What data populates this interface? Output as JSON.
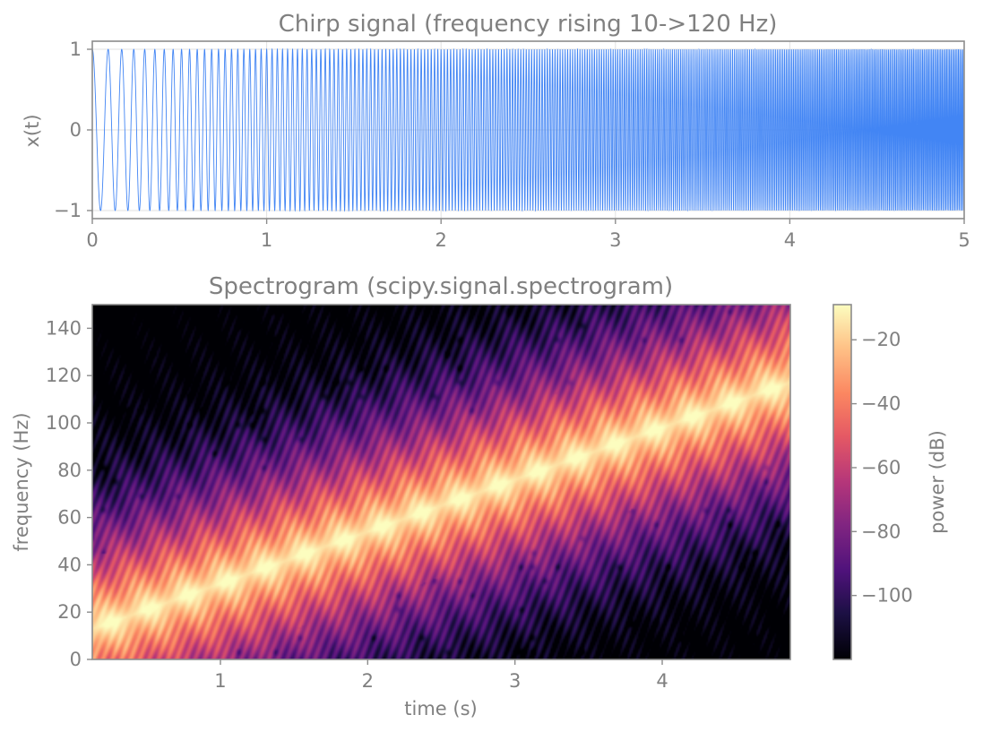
{
  "chart_data": [
    {
      "type": "line",
      "title": "Chirp signal (frequency rising 10->120 Hz)",
      "xlabel": "",
      "ylabel": "x(t)",
      "xlim": [
        0,
        5
      ],
      "ylim": [
        -1.1,
        1.1
      ],
      "xticks": [
        0,
        1,
        2,
        3,
        4,
        5
      ],
      "xtick_labels": [
        "0",
        "1",
        "2",
        "3",
        "4",
        "5"
      ],
      "yticks": [
        -1,
        0,
        1
      ],
      "ytick_labels": [
        "−1",
        "0",
        "1"
      ],
      "grid": true,
      "series": [
        {
          "color": "#4285f4",
          "function": "cos(2*pi*(10*t + 11*t^2))",
          "f0": 10,
          "f1": 120,
          "t_start": 0,
          "t_end": 5
        }
      ]
    },
    {
      "type": "heatmap",
      "title": "Spectrogram (scipy.signal.spectrogram)",
      "xlabel": "time (s)",
      "ylabel": "frequency (Hz)",
      "xlim": [
        0.13,
        4.87
      ],
      "ylim": [
        0,
        150
      ],
      "xticks": [
        1,
        2,
        3,
        4
      ],
      "xtick_labels": [
        "1",
        "2",
        "3",
        "4"
      ],
      "yticks": [
        0,
        20,
        40,
        60,
        80,
        100,
        120,
        140
      ],
      "ytick_labels": [
        "0",
        "20",
        "40",
        "60",
        "80",
        "100",
        "120",
        "140"
      ],
      "ridge": {
        "f_at_t0": 10,
        "slope_hz_per_s": 22
      },
      "colormap": "magma",
      "colorbar": {
        "label": "power (dB)",
        "range": [
          -120,
          -9
        ],
        "ticks": [
          -20,
          -40,
          -60,
          -80,
          -100
        ],
        "tick_labels": [
          "−20",
          "−40",
          "−60",
          "−80",
          "−100"
        ]
      }
    }
  ]
}
